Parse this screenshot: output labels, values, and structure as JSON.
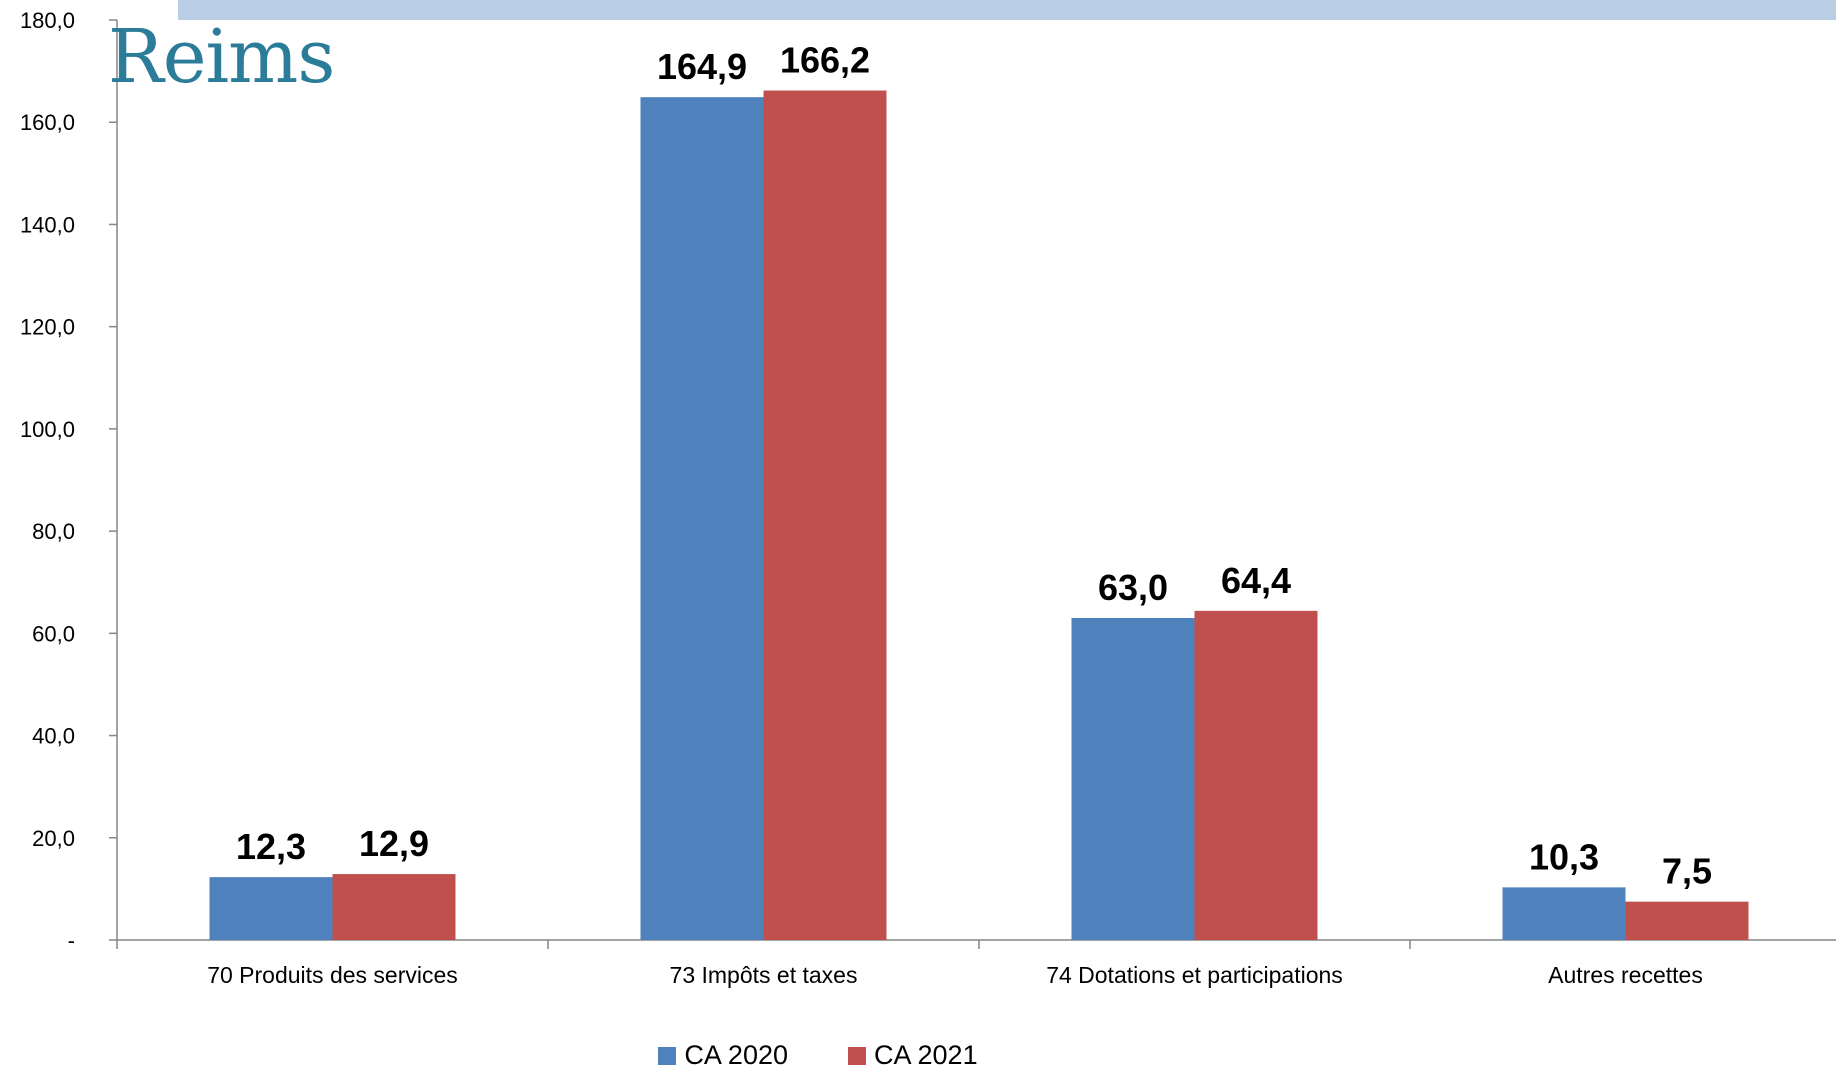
{
  "logo": {
    "text": "Reims"
  },
  "colors": {
    "ca2020": "#4f81bd",
    "ca2021": "#c0504d",
    "band": "#b9cde5",
    "logo": "#2b7c98"
  },
  "chart_data": {
    "type": "bar",
    "categories": [
      "70 Produits des services",
      "73 Impôts et taxes",
      "74 Dotations et participations",
      "Autres recettes"
    ],
    "series": [
      {
        "name": "CA 2020",
        "values": [
          12.3,
          164.9,
          63.0,
          10.3
        ],
        "labels": [
          "12,3",
          "164,9",
          "63,0",
          "10,3"
        ]
      },
      {
        "name": "CA 2021",
        "values": [
          12.9,
          166.2,
          64.4,
          7.5
        ],
        "labels": [
          "12,9",
          "166,2",
          "64,4",
          "7,5"
        ]
      }
    ],
    "ylim": [
      0,
      180
    ],
    "yticks": [
      0,
      20,
      40,
      60,
      80,
      100,
      120,
      140,
      160,
      180
    ],
    "ytick_labels": [
      "-",
      "20,0",
      "40,0",
      "60,0",
      "80,0",
      "100,0",
      "120,0",
      "140,0",
      "160,0",
      "180,0"
    ],
    "grid": false,
    "legend_position": "bottom"
  }
}
